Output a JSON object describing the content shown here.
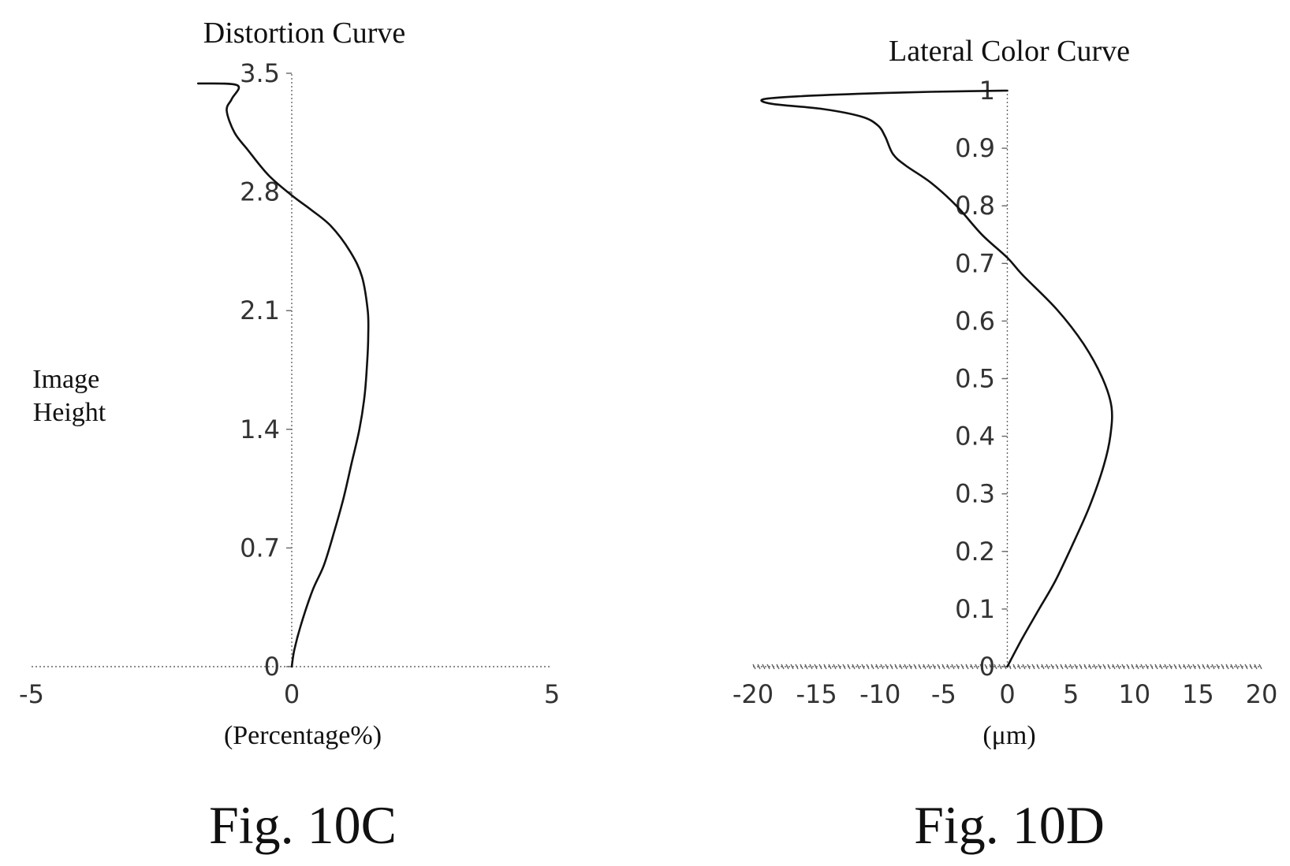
{
  "chart_data": [
    {
      "type": "line",
      "title": "Distortion Curve",
      "xlabel": "(Percentage%)",
      "ylabel": "Image\nHeight",
      "caption": "Fig. 10C",
      "xlim": [
        -5,
        5
      ],
      "ylim": [
        0,
        3.5
      ],
      "x_ticks": [
        "-5",
        "0",
        "5"
      ],
      "x_tick_values": [
        -5,
        0,
        5
      ],
      "y_ticks": [
        "0",
        "0.7",
        "1.4",
        "2.1",
        "2.8",
        "3.5"
      ],
      "y_tick_values": [
        0,
        0.7,
        1.4,
        2.1,
        2.8,
        3.5
      ],
      "grid": false,
      "series": [
        {
          "x": [
            0,
            0.05,
            0.18,
            0.4,
            0.62,
            0.82,
            1.0,
            1.15,
            1.3,
            1.4,
            1.45,
            1.47,
            1.46,
            1.35,
            1.12,
            0.75,
            0.35,
            0.0,
            -0.45,
            -0.85,
            -1.1,
            -1.25,
            -1.15,
            -1.05,
            -1.8
          ],
          "y": [
            0,
            0.1,
            0.25,
            0.45,
            0.6,
            0.8,
            1.0,
            1.2,
            1.4,
            1.6,
            1.8,
            1.95,
            2.1,
            2.3,
            2.45,
            2.6,
            2.7,
            2.78,
            2.9,
            3.05,
            3.15,
            3.28,
            3.35,
            3.43,
            3.44
          ]
        }
      ]
    },
    {
      "type": "line",
      "title": "Lateral Color Curve",
      "xlabel": "(μm)",
      "caption": "Fig. 10D",
      "xlim": [
        -20,
        20
      ],
      "ylim": [
        0,
        1
      ],
      "x_ticks": [
        "-20",
        "-15",
        "-10",
        "-5",
        "0",
        "5",
        "10",
        "15",
        "20"
      ],
      "x_tick_values": [
        -20,
        -15,
        -10,
        -5,
        0,
        5,
        10,
        15,
        20
      ],
      "y_ticks": [
        "0",
        "0.1",
        "0.2",
        "0.3",
        "0.4",
        "0.5",
        "0.6",
        "0.7",
        "0.8",
        "0.9",
        "1"
      ],
      "y_tick_values": [
        0,
        0.1,
        0.2,
        0.3,
        0.4,
        0.5,
        0.6,
        0.7,
        0.8,
        0.9,
        1
      ],
      "grid": false,
      "series": [
        {
          "x": [
            0,
            1.2,
            2.5,
            3.8,
            5.3,
            6.5,
            7.6,
            8.1,
            8.2,
            7.5,
            6.0,
            3.9,
            1.2,
            0.0,
            -2.0,
            -4.0,
            -6.0,
            -8.0,
            -9.0,
            -9.6,
            -10.2,
            -11.5,
            -14.5,
            -18.5,
            -19.2,
            -16.5,
            -11.0,
            -6.0,
            -3.0,
            0.0
          ],
          "y": [
            0,
            0.05,
            0.1,
            0.15,
            0.22,
            0.28,
            0.35,
            0.4,
            0.45,
            0.5,
            0.56,
            0.62,
            0.68,
            0.71,
            0.75,
            0.8,
            0.84,
            0.87,
            0.89,
            0.92,
            0.94,
            0.955,
            0.968,
            0.977,
            0.985,
            0.99,
            0.995,
            0.998,
            0.999,
            1.0
          ]
        }
      ]
    }
  ]
}
